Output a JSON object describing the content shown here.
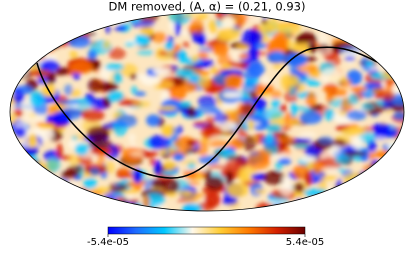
{
  "chart_data": {
    "type": "map",
    "title": "DM removed, (A, α) = (0.21, 0.93)",
    "projection": "mollweide",
    "clim": [
      -5.4e-05,
      5.4e-05
    ],
    "cticks": [
      {
        "value": -5.4e-05,
        "label": "-5.4e-05"
      },
      {
        "value": 5.4e-05,
        "label": "5.4e-05"
      }
    ],
    "colormap": [
      "#0000ff",
      "#1e6cff",
      "#00c8ff",
      "#fff8ea",
      "#ffcc33",
      "#ff7a00",
      "#d42000",
      "#6a0000"
    ]
  }
}
